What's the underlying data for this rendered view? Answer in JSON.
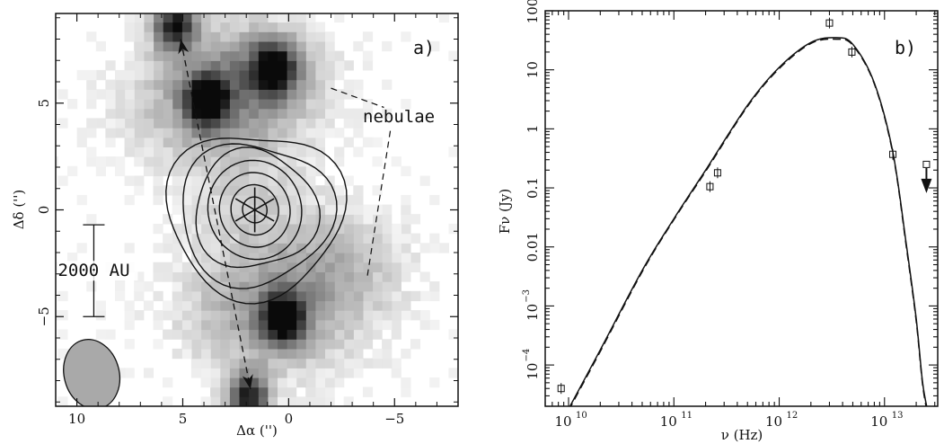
{
  "chart_data": [
    {
      "type": "heatmap",
      "panel_label": "a)",
      "xlabel": "Δα ('')",
      "ylabel": "Δδ ('')",
      "xlim": [
        11,
        -8
      ],
      "ylim": [
        -9.2,
        9.2
      ],
      "x_ticks": [
        10,
        5,
        0,
        -5
      ],
      "y_ticks": [
        -5,
        0,
        5
      ],
      "colormap": "grayscale",
      "annotations": {
        "nebulae_label": "nebulae",
        "scale_bar_label": "2000 AU",
        "scale_bar_y_range": [
          -5,
          -0.7
        ],
        "scale_bar_x": 9.2,
        "beam_center": [
          9.3,
          -7.7
        ],
        "beam_size": [
          2.6,
          3.3
        ]
      },
      "source_position": [
        1.6,
        0.0
      ],
      "outflow_axis": [
        [
          5.1,
          8.0
        ],
        [
          1.8,
          -8.4
        ]
      ],
      "contour_levels": 7,
      "image_blobs": [
        {
          "x": 3.9,
          "y": 5.1,
          "peak": 0.95
        },
        {
          "x": 0.7,
          "y": 6.7,
          "peak": 0.85
        },
        {
          "x": 5.4,
          "y": 8.7,
          "peak": 0.9
        },
        {
          "x": 0.3,
          "y": -5.1,
          "peak": 0.95
        },
        {
          "x": 1.9,
          "y": -8.8,
          "peak": 0.9
        }
      ]
    },
    {
      "type": "scatter",
      "panel_label": "b)",
      "xlabel": "ν (Hz)",
      "ylabel": "Fν (Jy)",
      "xscale": "log",
      "yscale": "log",
      "xlim": [
        6000000000.0,
        32000000000000.0
      ],
      "ylim": [
        2e-05,
        100
      ],
      "x_tick_bases": [
        "10",
        "10",
        "10",
        "10"
      ],
      "x_tick_exponents": [
        "10",
        "11",
        "12",
        "13"
      ],
      "x_tick_values": [
        10000000000.0,
        100000000000.0,
        1000000000000.0,
        10000000000000.0
      ],
      "y_tick_labels": [
        "100",
        "10",
        "1",
        "0.1",
        "0.01"
      ],
      "y_tick_values": [
        100,
        10,
        1,
        0.1,
        0.01
      ],
      "y_tick_pow_bases": [
        "10",
        "10"
      ],
      "y_tick_pow_exponents": [
        "-3",
        "-4"
      ],
      "y_tick_pow_values": [
        0.001,
        0.0001
      ],
      "points": [
        {
          "x": 8500000000.0,
          "y": 4e-05
        },
        {
          "x": 220000000000.0,
          "y": 0.105
        },
        {
          "x": 260000000000.0,
          "y": 0.18
        },
        {
          "x": 3000000000000.0,
          "y": 62
        },
        {
          "x": 4900000000000.0,
          "y": 20
        },
        {
          "x": 12000000000000.0,
          "y": 0.37
        }
      ],
      "upper_limits": [
        {
          "x": 25000000000000.0,
          "y": 0.25
        }
      ],
      "model_solid": {
        "x": [
          10000000000.0,
          20000000000.0,
          50000000000.0,
          100000000000.0,
          200000000000.0,
          500000000000.0,
          1000000000000.0,
          2000000000000.0,
          3500000000000.0,
          5000000000000.0,
          8000000000000.0,
          12000000000000.0,
          16000000000000.0,
          20000000000000.0,
          23000000000000.0,
          26000000000000.0
        ],
        "y": [
          1.8e-05,
          0.00018,
          0.004,
          0.03,
          0.2,
          2.5,
          11,
          29,
          35,
          27,
          6,
          0.4,
          0.012,
          0.0006,
          5e-05,
          1.5e-05
        ]
      },
      "model_dashed": {
        "x": [
          10000000000.0,
          20000000000.0,
          50000000000.0,
          100000000000.0,
          200000000000.0,
          500000000000.0,
          1000000000000.0,
          2000000000000.0,
          3500000000000.0,
          5000000000000.0,
          8000000000000.0,
          12000000000000.0,
          16000000000000.0,
          20000000000000.0,
          23000000000000.0,
          26000000000000.0
        ],
        "y": [
          1.7e-05,
          0.00017,
          0.0038,
          0.029,
          0.19,
          2.4,
          10.5,
          28,
          33,
          26,
          5.8,
          0.38,
          0.011,
          0.00055,
          4.6e-05,
          1.3e-05
        ]
      }
    }
  ]
}
